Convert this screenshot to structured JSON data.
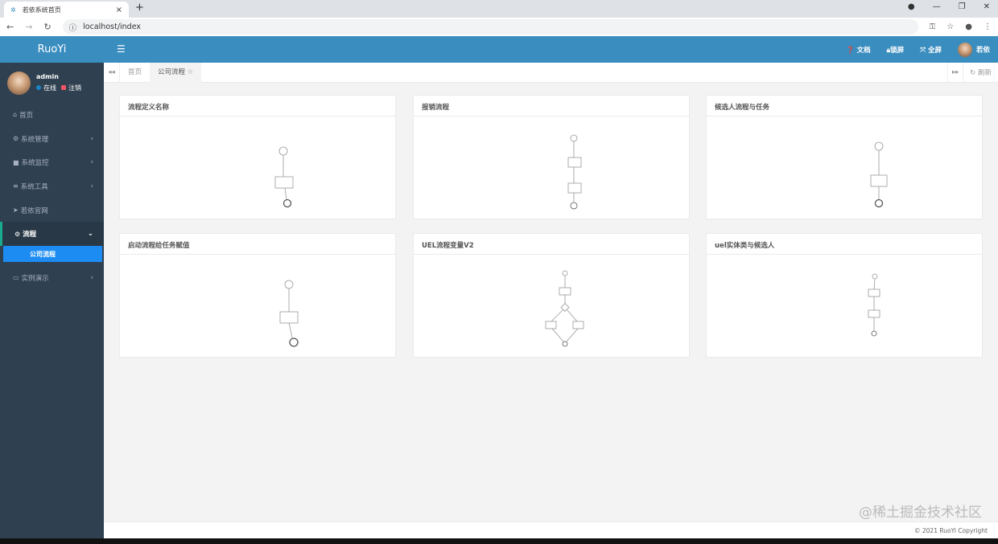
{
  "browser": {
    "tab_title": "若依系统首页",
    "url": "localhost/index"
  },
  "sidebar": {
    "logo": "RuoYi",
    "user": {
      "name": "admin",
      "online": "在线",
      "logout": "注销"
    },
    "items": [
      {
        "label": "首页",
        "icon": "home-icon"
      },
      {
        "label": "系统管理",
        "icon": "gear-icon",
        "arrow": "‹"
      },
      {
        "label": "系统监控",
        "icon": "video-icon",
        "arrow": "‹"
      },
      {
        "label": "系统工具",
        "icon": "bars-icon",
        "arrow": "‹"
      },
      {
        "label": "若依官网",
        "icon": "location-arrow-icon"
      },
      {
        "label": "流程",
        "icon": "cogs-icon",
        "arrow": "⌄"
      }
    ],
    "sub_item": "公司流程",
    "last_item": {
      "label": "实例演示",
      "icon": "desktop-icon",
      "arrow": "‹"
    }
  },
  "header": {
    "docs": "文档",
    "lock": "锁屏",
    "fullscreen": "全屏",
    "user": "若依"
  },
  "tabs": {
    "items": [
      "首页",
      "公司流程"
    ],
    "refresh": "刷新"
  },
  "cards": [
    {
      "title": "流程定义名称"
    },
    {
      "title": "报销流程"
    },
    {
      "title": "候选人流程与任务"
    },
    {
      "title": "启动流程给任务赋值"
    },
    {
      "title": "UEL流程变量V2"
    },
    {
      "title": "uel实体类与候选人"
    }
  ],
  "footer": {
    "copyright": "© 2021 RuoYi Copyright",
    "watermark": "@稀土掘金技术社区"
  },
  "colors": {
    "header": "#3a8dbf",
    "sidebar": "#2f4050",
    "active_sub": "#1c8cf2"
  }
}
